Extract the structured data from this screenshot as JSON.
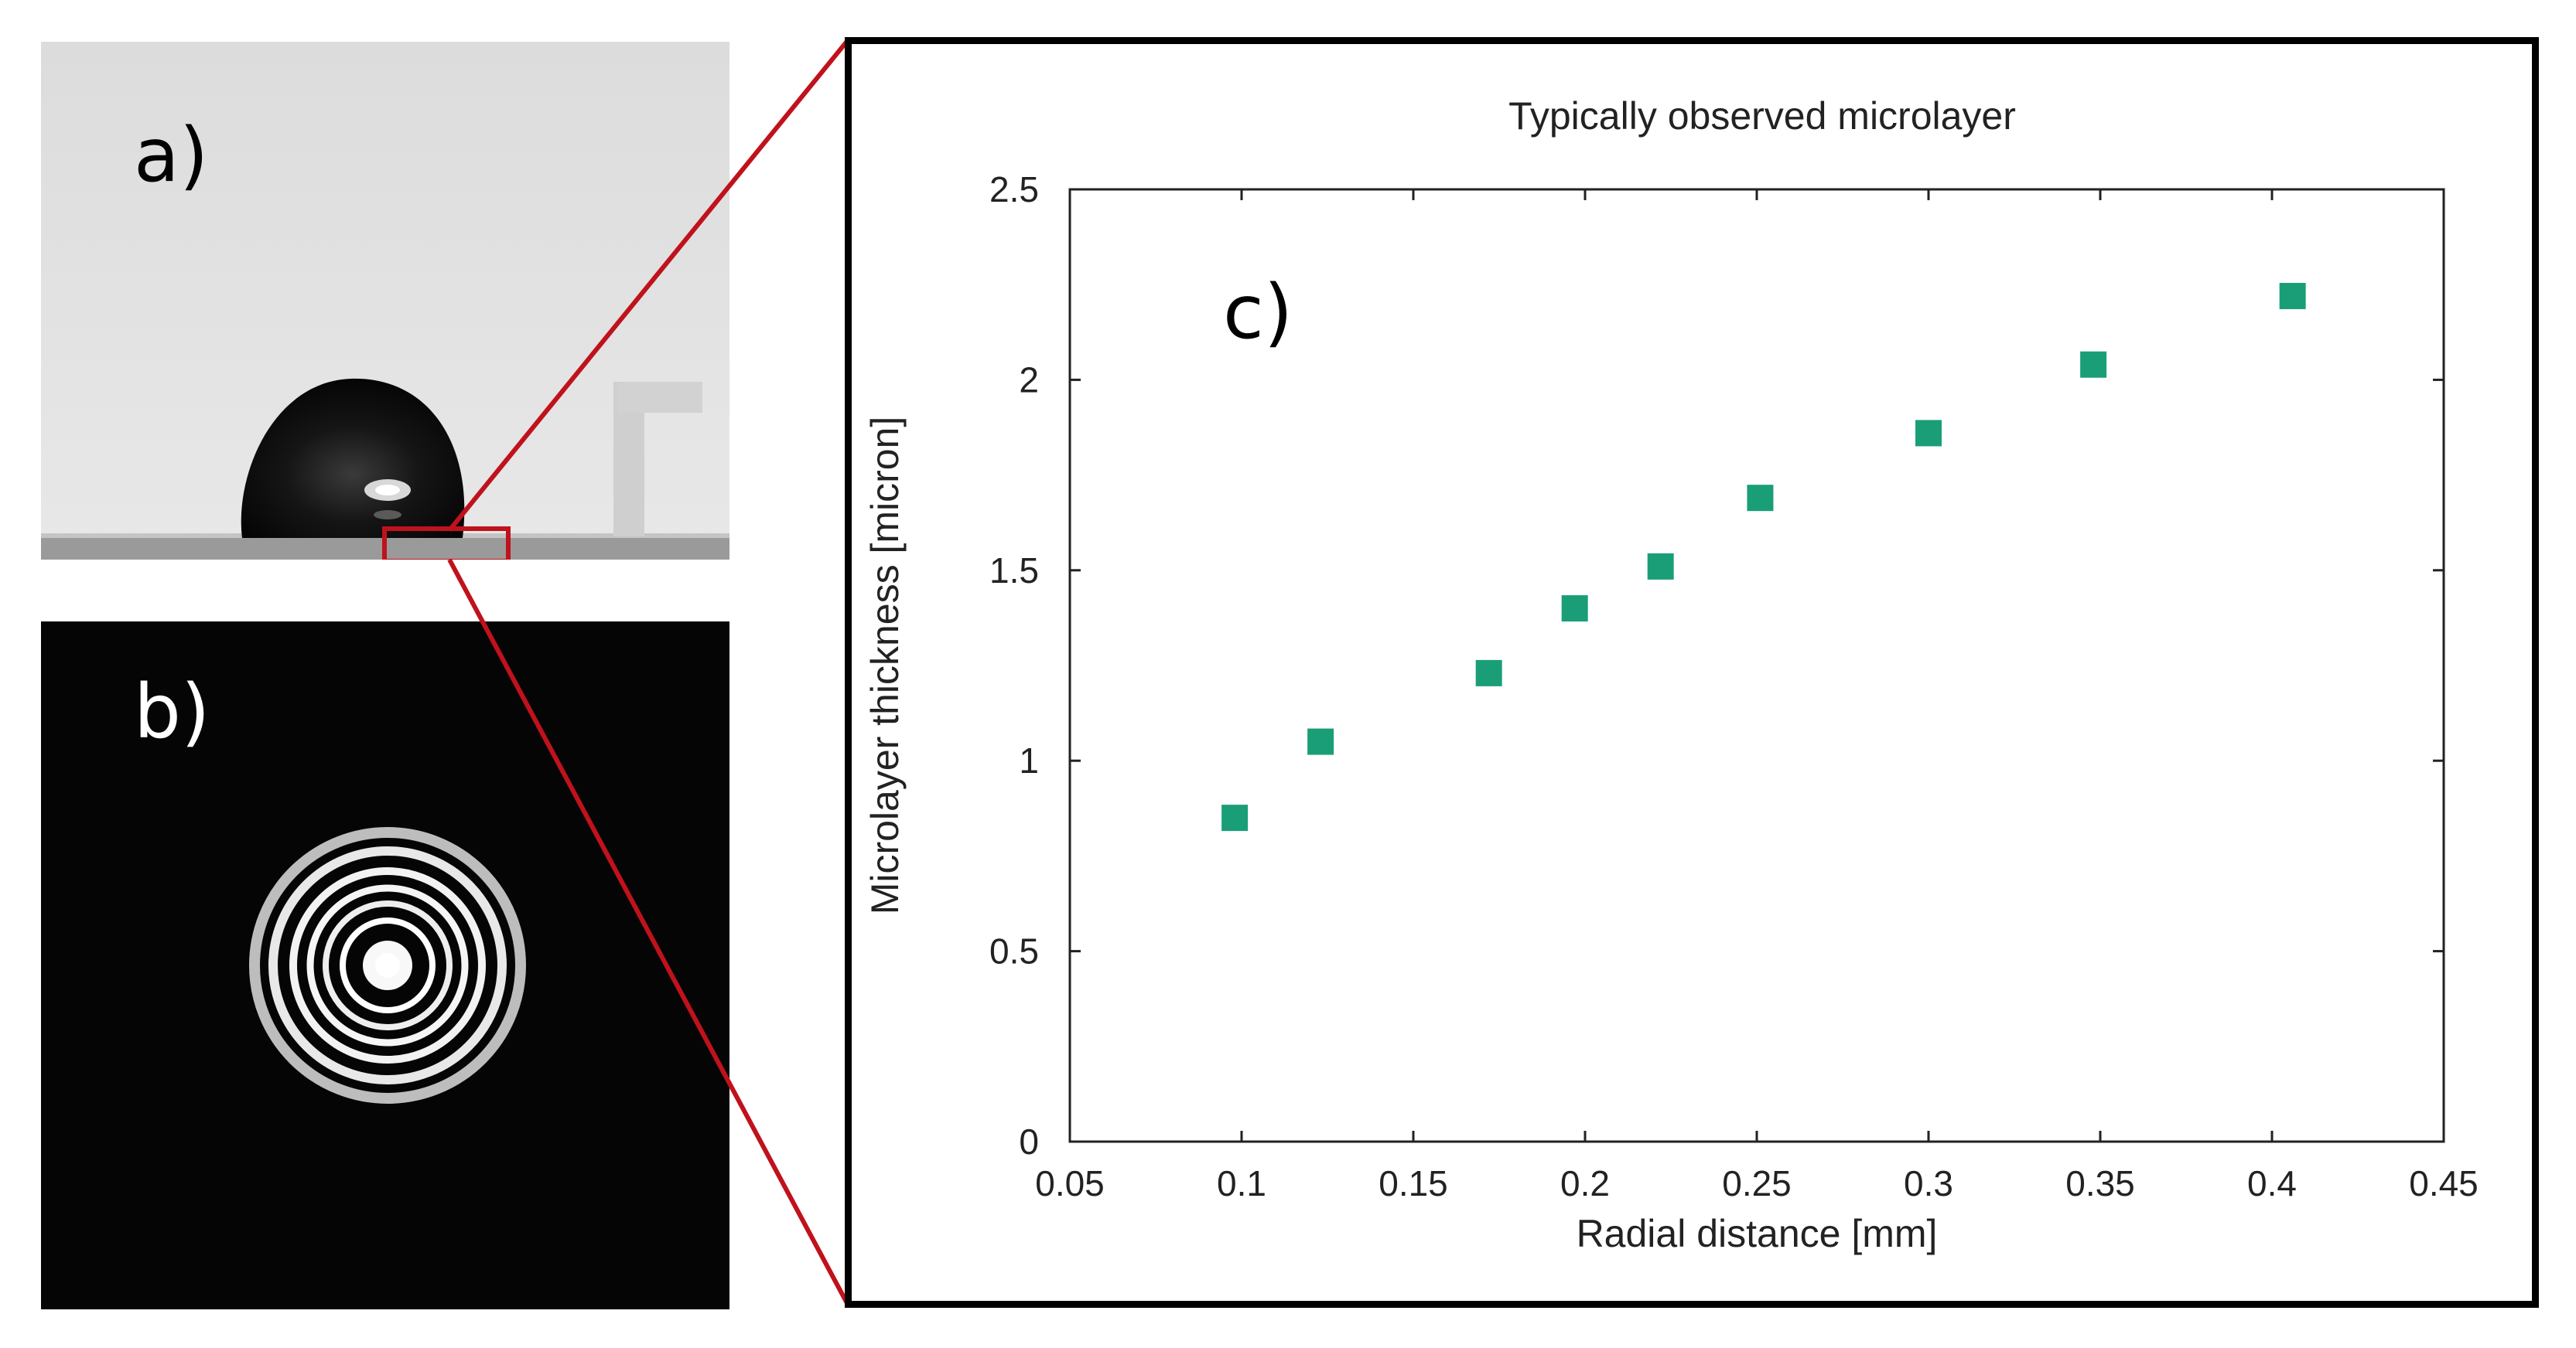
{
  "panels": {
    "a_label": "a)",
    "b_label": "b)",
    "c_label": "c)"
  },
  "colors": {
    "marker": "#1a9e77",
    "zoom_lines": "#c0121c"
  },
  "chart_data": {
    "type": "scatter",
    "title": "Typically observed microlayer",
    "xlabel": "Radial distance [mm]",
    "ylabel": "Microlayer thickness [micron]",
    "xlim": [
      0.05,
      0.45
    ],
    "ylim": [
      0,
      2.5
    ],
    "xticks": [
      "0.05",
      "0.1",
      "0.15",
      "0.2",
      "0.25",
      "0.3",
      "0.35",
      "0.4",
      "0.45"
    ],
    "yticks": [
      "0",
      "0.5",
      "1",
      "1.5",
      "2",
      "2.5"
    ],
    "grid": false,
    "legend": "none",
    "series": [
      {
        "x": [
          0.098,
          0.123,
          0.172,
          0.197,
          0.222,
          0.251,
          0.3,
          0.348,
          0.406
        ],
        "y": [
          0.85,
          1.05,
          1.23,
          1.4,
          1.51,
          1.69,
          1.86,
          2.04,
          2.22
        ]
      }
    ]
  }
}
